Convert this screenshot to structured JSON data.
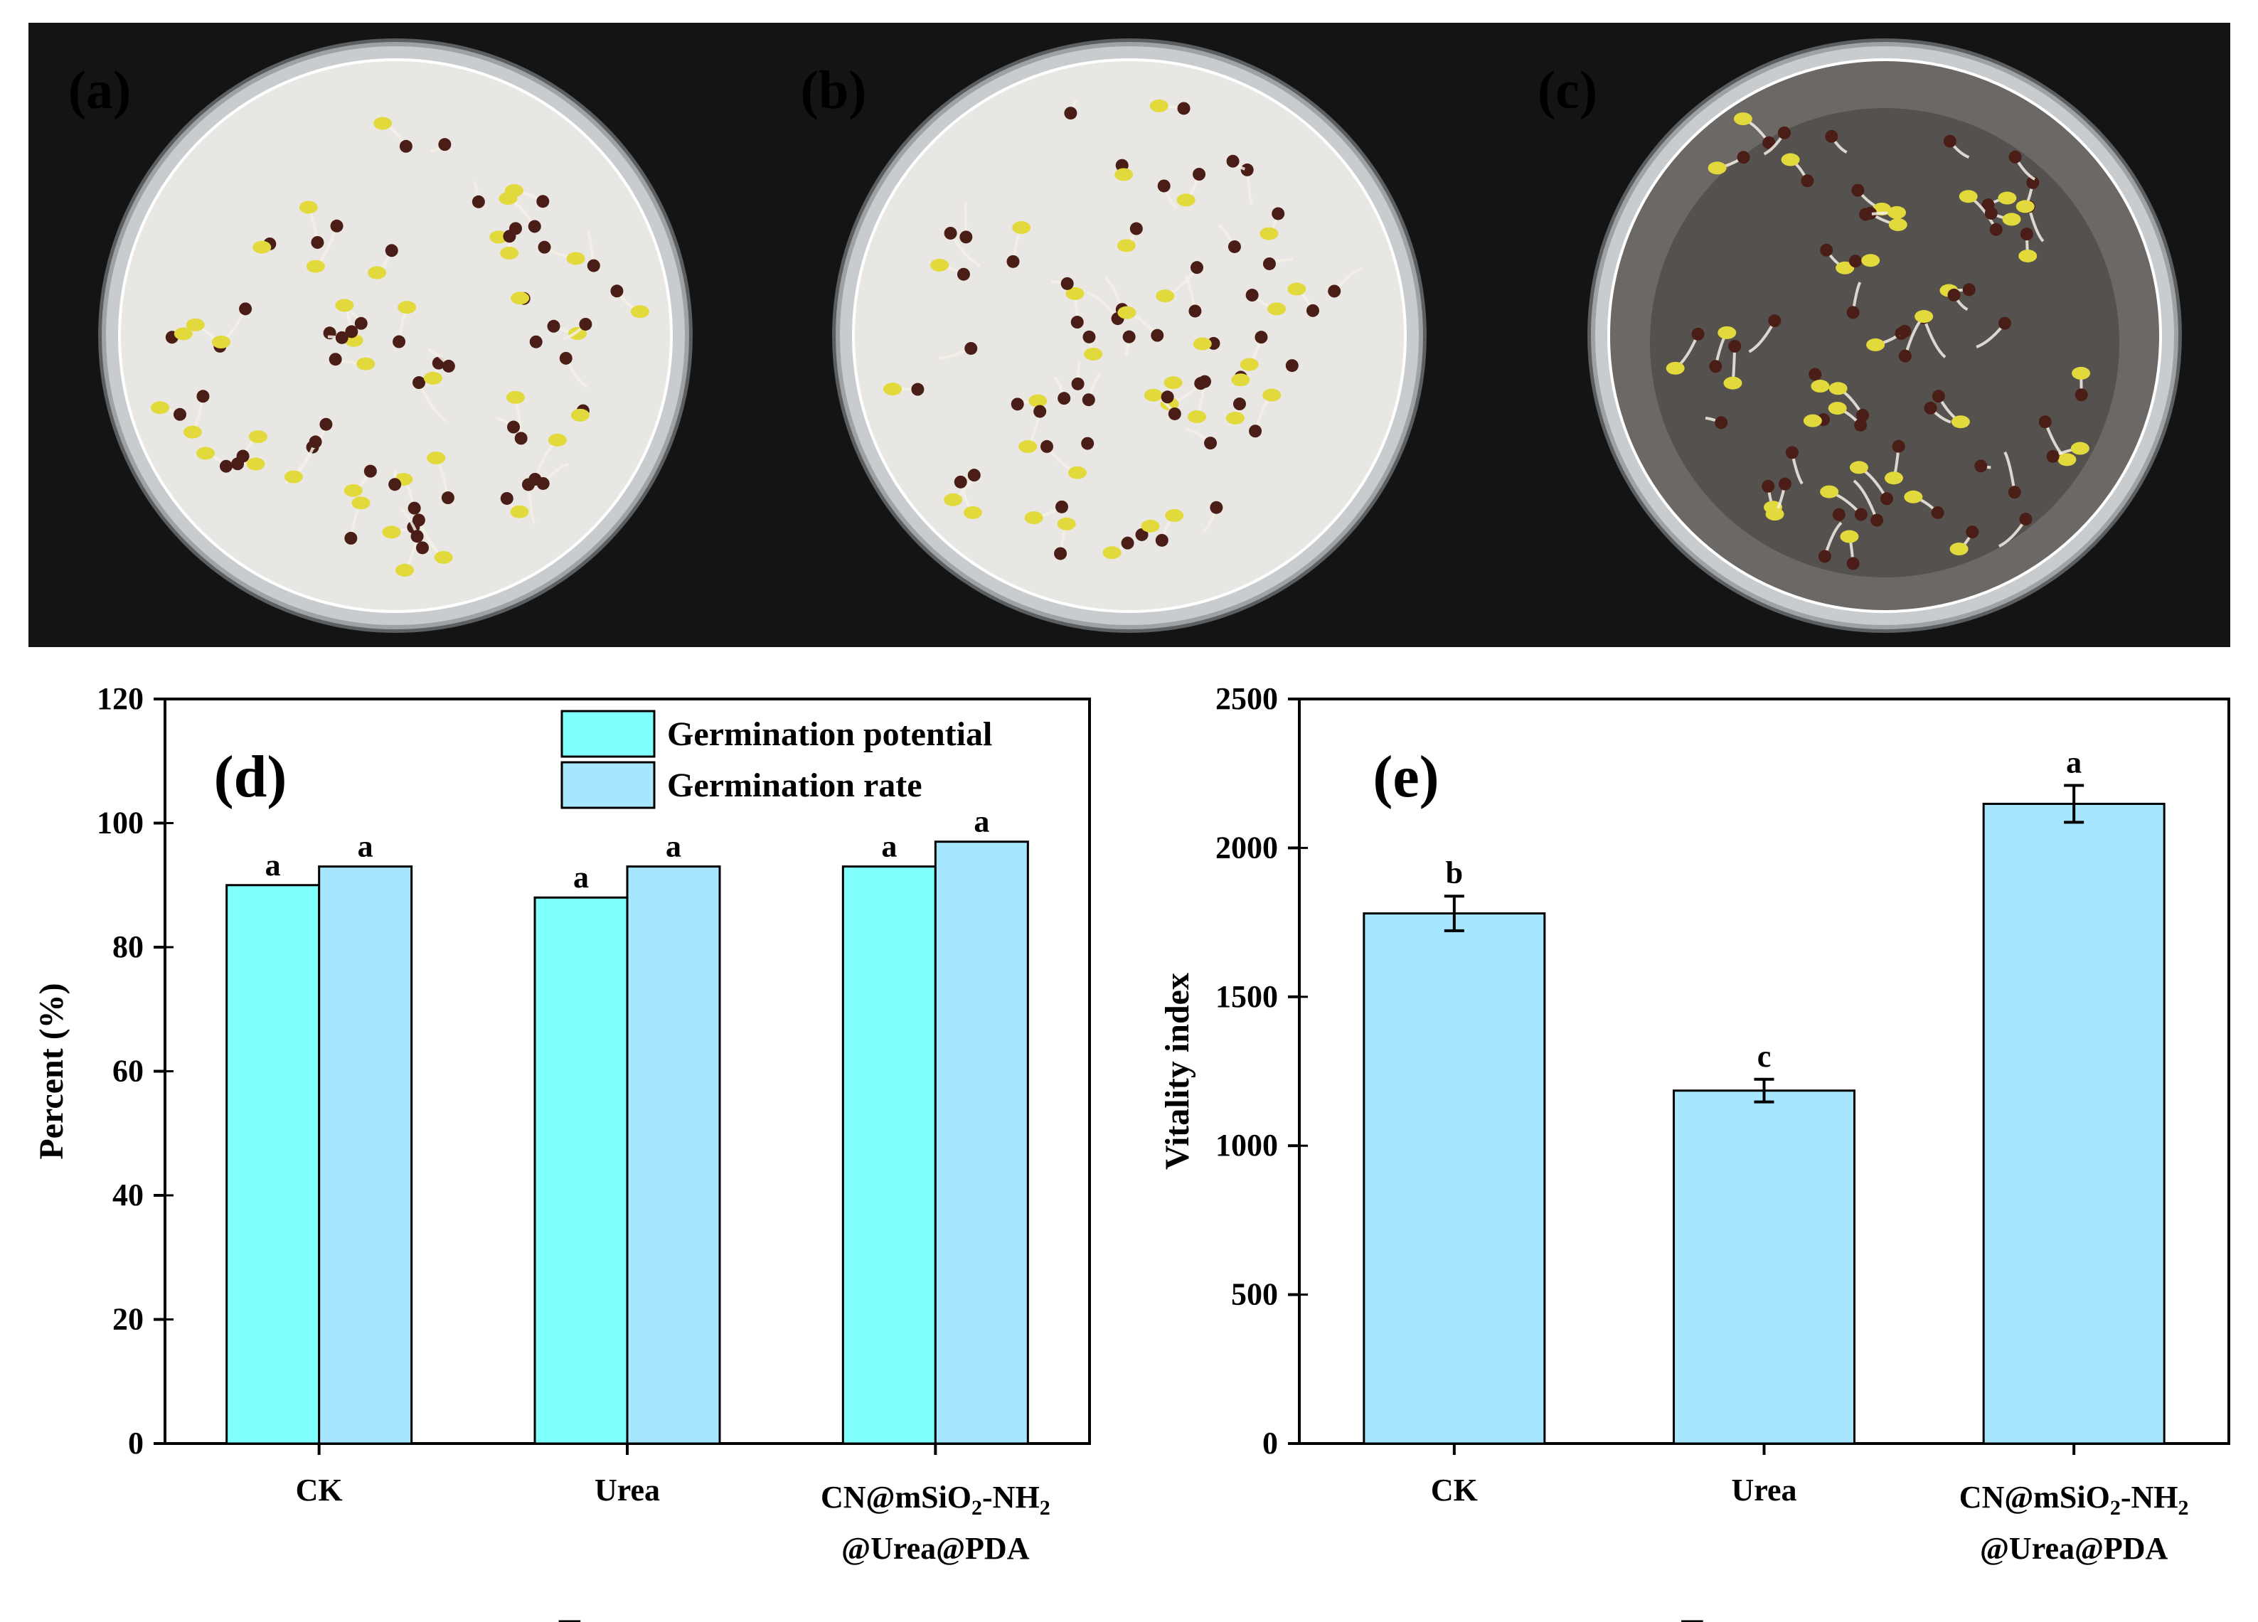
{
  "panels": {
    "photos": [
      {
        "label": "(a)"
      },
      {
        "label": "(b)"
      },
      {
        "label": "(c)"
      }
    ],
    "photo_label_color": "#f2b705",
    "dish_colors": {
      "background": "#141414",
      "paper": "#e9e7e4",
      "rim": "#c9ccce",
      "seed": "#4a1e16",
      "sprout": "#e2d93c"
    }
  },
  "chart_data": [
    {
      "type": "bar",
      "panel_label": "(d)",
      "categories": [
        {
          "line1": "CK",
          "line2": "",
          "sub": ""
        },
        {
          "line1": "Urea",
          "line2": "",
          "sub": ""
        },
        {
          "line1": "CN@mSiO",
          "sub1": "2",
          "mid": "-NH",
          "sub2": "2",
          "line2": "@Urea@PDA"
        }
      ],
      "series": [
        {
          "name": "Germination potential",
          "values": [
            90,
            88,
            93
          ],
          "letters": [
            "a",
            "a",
            "a"
          ],
          "color": "#80ffff"
        },
        {
          "name": "Germination rate",
          "values": [
            93,
            93,
            97
          ],
          "letters": [
            "a",
            "a",
            "a"
          ],
          "color": "#a6e6ff"
        }
      ],
      "xlabel": "Treatment",
      "ylabel": "Percent (%)",
      "ylim": [
        0,
        120
      ],
      "yticks": [
        "0",
        "20",
        "40",
        "60",
        "80",
        "100",
        "120"
      ],
      "legend_position": "top-right"
    },
    {
      "type": "bar",
      "panel_label": "(e)",
      "categories": [
        {
          "line1": "CK"
        },
        {
          "line1": "Urea"
        },
        {
          "line1": "CN@mSiO",
          "sub1": "2",
          "mid": "-NH",
          "sub2": "2",
          "line2": "@Urea@PDA"
        }
      ],
      "values": [
        1780,
        1185,
        2148
      ],
      "errors": [
        58,
        38,
        62
      ],
      "letters": [
        "b",
        "c",
        "a"
      ],
      "color": "#a6e6ff",
      "xlabel": "Treatment",
      "ylabel": "Vitality index",
      "ylim": [
        0,
        2500
      ],
      "yticks": [
        "0",
        "500",
        "1000",
        "1500",
        "2000",
        "2500"
      ]
    }
  ]
}
